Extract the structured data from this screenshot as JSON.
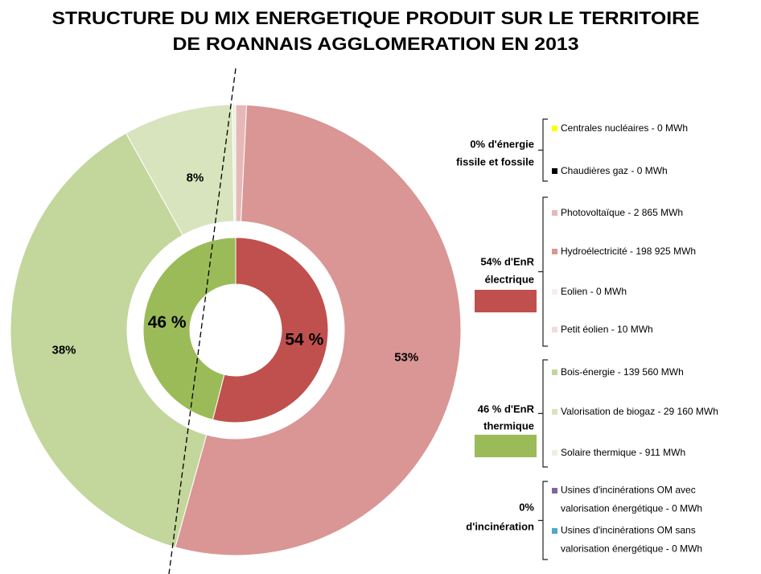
{
  "chart_data": {
    "type": "nested-donut",
    "title": [
      "STRUCTURE DU MIX ENERGETIQUE PRODUIT SUR LE TERRITOIRE",
      "DE ROANNAIS AGGLOMERATION EN 2013"
    ],
    "inner": {
      "values": [
        54,
        46
      ],
      "value_labels": [
        "54 %",
        "46 %"
      ],
      "colors": [
        "#c0504d",
        "#9bbb59"
      ]
    },
    "groups": [
      {
        "label": [
          "0% d'énergie",
          "fissile et fossile"
        ],
        "items": [
          {
            "name": [
              "Centrales nucléaires - 0 MWh"
            ],
            "value": 0,
            "color": "#ffff00"
          },
          {
            "name": [
              "Chaudières gaz - 0 MWh"
            ],
            "value": 0,
            "color": "#000000"
          }
        ]
      },
      {
        "label": [
          "54% d'EnR",
          "électrique"
        ],
        "color": "#c0504d",
        "items": [
          {
            "name": [
              "Photovoltaïque - 2 865 MWh"
            ],
            "value": 2865,
            "color": "#e6b9b8"
          },
          {
            "name": [
              "Hydroélectricité - 198 925 MWh"
            ],
            "value": 198925,
            "color": "#d99694",
            "share": 53,
            "share_label": "53%"
          },
          {
            "name": [
              "Eolien - 0 MWh"
            ],
            "value": 0,
            "color": "#f9eded"
          },
          {
            "name": [
              "Petit éolien - 10 MWh"
            ],
            "value": 10,
            "color": "#f2dcdb"
          }
        ]
      },
      {
        "label": [
          "46 % d'EnR",
          "thermique"
        ],
        "color": "#9bbb59",
        "items": [
          {
            "name": [
              "Bois-énergie - 139 560 MWh"
            ],
            "value": 139560,
            "color": "#c3d69b",
            "share": 38,
            "share_label": "38%"
          },
          {
            "name": [
              "Valorisation de biogaz - 29 160 MWh"
            ],
            "value": 29160,
            "color": "#d7e4bd",
            "share": 8,
            "share_label": "8%"
          },
          {
            "name": [
              "Solaire thermique - 911 MWh"
            ],
            "value": 911,
            "color": "#ebf1de"
          }
        ]
      },
      {
        "label": [
          "0%",
          "d'incinération"
        ],
        "items": [
          {
            "name": [
              "Usines d'incinérations OM avec",
              "valorisation énergétique - 0 MWh"
            ],
            "value": 0,
            "color": "#8064a2"
          },
          {
            "name": [
              "Usines d'incinérations OM sans",
              "valorisation énergétique - 0 MWh"
            ],
            "value": 0,
            "color": "#4bacc6"
          }
        ]
      }
    ]
  }
}
